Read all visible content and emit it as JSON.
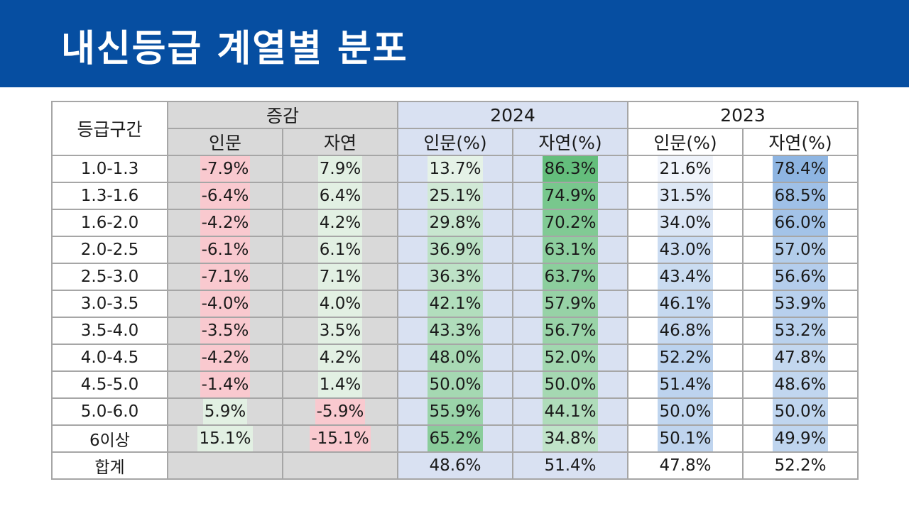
{
  "title": "내신등급 계열별 분포",
  "headers": {
    "grade_range": "등급구간",
    "change": "증감",
    "change_sub": [
      "인문",
      "자연"
    ],
    "y2024": "2024",
    "y2024_sub": [
      "인문(%)",
      "자연(%)"
    ],
    "y2023": "2023",
    "y2023_sub": [
      "인문(%)",
      "자연(%)"
    ]
  },
  "rows": [
    {
      "label": "1.0-1.3",
      "inc_h": "-7.9%",
      "inc_n": "7.9%",
      "h24": "13.7%",
      "n24": "86.3%",
      "h23": "21.6%",
      "n23": "78.4%"
    },
    {
      "label": "1.3-1.6",
      "inc_h": "-6.4%",
      "inc_n": "6.4%",
      "h24": "25.1%",
      "n24": "74.9%",
      "h23": "31.5%",
      "n23": "68.5%"
    },
    {
      "label": "1.6-2.0",
      "inc_h": "-4.2%",
      "inc_n": "4.2%",
      "h24": "29.8%",
      "n24": "70.2%",
      "h23": "34.0%",
      "n23": "66.0%"
    },
    {
      "label": "2.0-2.5",
      "inc_h": "-6.1%",
      "inc_n": "6.1%",
      "h24": "36.9%",
      "n24": "63.1%",
      "h23": "43.0%",
      "n23": "57.0%"
    },
    {
      "label": "2.5-3.0",
      "inc_h": "-7.1%",
      "inc_n": "7.1%",
      "h24": "36.3%",
      "n24": "63.7%",
      "h23": "43.4%",
      "n23": "56.6%"
    },
    {
      "label": "3.0-3.5",
      "inc_h": "-4.0%",
      "inc_n": "4.0%",
      "h24": "42.1%",
      "n24": "57.9%",
      "h23": "46.1%",
      "n23": "53.9%"
    },
    {
      "label": "3.5-4.0",
      "inc_h": "-3.5%",
      "inc_n": "3.5%",
      "h24": "43.3%",
      "n24": "56.7%",
      "h23": "46.8%",
      "n23": "53.2%"
    },
    {
      "label": "4.0-4.5",
      "inc_h": "-4.2%",
      "inc_n": "4.2%",
      "h24": "48.0%",
      "n24": "52.0%",
      "h23": "52.2%",
      "n23": "47.8%"
    },
    {
      "label": "4.5-5.0",
      "inc_h": "-1.4%",
      "inc_n": "1.4%",
      "h24": "50.0%",
      "n24": "50.0%",
      "h23": "51.4%",
      "n23": "48.6%"
    },
    {
      "label": "5.0-6.0",
      "inc_h": "5.9%",
      "inc_n": "-5.9%",
      "h24": "55.9%",
      "n24": "44.1%",
      "h23": "50.0%",
      "n23": "50.0%"
    },
    {
      "label": "6이상",
      "inc_h": "15.1%",
      "inc_n": "-15.1%",
      "h24": "65.2%",
      "n24": "34.8%",
      "h23": "50.1%",
      "n23": "49.9%"
    },
    {
      "label": "합계",
      "inc_h": "",
      "inc_n": "",
      "h24": "48.6%",
      "n24": "51.4%",
      "h23": "47.8%",
      "n23": "52.2%"
    }
  ],
  "colors": {
    "header_bg": "#064ea1",
    "change_bg": "#d9d9d9",
    "y2024_bg": "#d9e1f2",
    "neg_fill": "#f9c9cf",
    "pos_fill": "#e2f0e3",
    "green_base": "#63be7b",
    "blue_base": "#8db4e2"
  }
}
